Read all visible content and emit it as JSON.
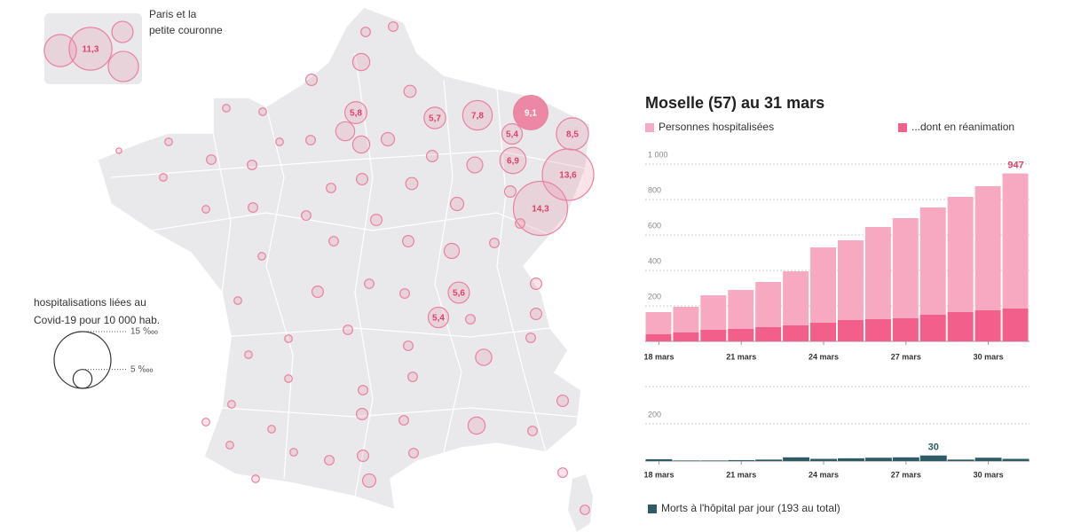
{
  "map": {
    "inset_label": "Paris et la petite couronne",
    "legend_title": "hospitalisations liées au Covid-19 pour 10 000 hab.",
    "legend_sizes": [
      15,
      5
    ],
    "legend_size_labels": [
      "15 ‱",
      "5 ‱"
    ],
    "bubble_color": "#e8829f",
    "highlight_color": "#ec7d9d",
    "bubbles": [
      11.3,
      5.8,
      5.7,
      7.8,
      9.1,
      5.4,
      8.5,
      6.9,
      13.6,
      14.3,
      5.6,
      5.4,
      5.6,
      8,
      8.5,
      4.5,
      3,
      3.2,
      2.5,
      2.5,
      2,
      2,
      5,
      3.5,
      4.5,
      2.5,
      2,
      2,
      1.5,
      2.5,
      2.5,
      2,
      3,
      3.2,
      4.2,
      3,
      3,
      3.5,
      2.5,
      2.5,
      2,
      2.5,
      3,
      2.5,
      2,
      3,
      4,
      2.5,
      2.5,
      3,
      3,
      2,
      3,
      2.5,
      2.5,
      4.3,
      2.5,
      2.5,
      2.5,
      2,
      2,
      2.5,
      2.5,
      2.5,
      3,
      4.5,
      2.5,
      2.5,
      3,
      2,
      2,
      2,
      2,
      2,
      2.5,
      3,
      3.5,
      2.5,
      2,
      2,
      2.5,
      2.5
    ],
    "value_labels": [
      "11,3",
      "5,8",
      "5,7",
      "7,8",
      "9,1",
      "5,4",
      "8,5",
      "6,9",
      "13,6",
      "14,3",
      "5,6",
      "5,4",
      null,
      null,
      null,
      null,
      null,
      null,
      null,
      null,
      null,
      null,
      null,
      null,
      null,
      null,
      null,
      null,
      null,
      null,
      null,
      null,
      null,
      null,
      null,
      null,
      null,
      null,
      null,
      null,
      null,
      null,
      null,
      null,
      null,
      null,
      null,
      null,
      null,
      null,
      null,
      null,
      null,
      null,
      null,
      null,
      null,
      null,
      null,
      null,
      null,
      null,
      null,
      null,
      null,
      null,
      null,
      null,
      null,
      null,
      null,
      null,
      null,
      null,
      null,
      null,
      null,
      null,
      null,
      null,
      null,
      null
    ]
  },
  "chart_data": [
    {
      "type": "bar",
      "title": "Moselle (57) au 31 mars",
      "categories": [
        "18 mars",
        null,
        null,
        "21 mars",
        null,
        null,
        "24 mars",
        null,
        null,
        "27 mars",
        null,
        null,
        "30 mars",
        null
      ],
      "series": [
        {
          "name": "Personnes hospitalisées",
          "color": "#f6a9c0",
          "values": [
            165,
            195,
            260,
            290,
            335,
            395,
            530,
            570,
            645,
            695,
            755,
            815,
            875,
            947
          ]
        },
        {
          "name": "...dont en réanimation",
          "color": "#f25f8b",
          "values": [
            40,
            50,
            65,
            70,
            80,
            90,
            105,
            120,
            125,
            130,
            150,
            165,
            175,
            185
          ]
        }
      ],
      "value_labels": {
        "series": 0,
        "index": 13,
        "label": "947"
      },
      "ylim": [
        0,
        1000
      ],
      "yticks": [
        {
          "value": 200,
          "label": "200"
        },
        400,
        600,
        800,
        {
          "value": 1000,
          "label": "1 000"
        }
      ],
      "grid": true
    },
    {
      "type": "bar",
      "categories": [
        "18 mars",
        null,
        null,
        "21 mars",
        null,
        null,
        "24 mars",
        null,
        null,
        "27 mars",
        null,
        null,
        "30 mars",
        null
      ],
      "series": [
        {
          "name": "Morts à l'hôpital par jour (193 au total)",
          "color": "#2e5b66",
          "values": [
            10,
            3,
            3,
            5,
            8,
            20,
            12,
            15,
            18,
            20,
            30,
            8,
            18,
            12
          ]
        }
      ],
      "value_labels": {
        "series": 0,
        "index": 10,
        "label": "30"
      },
      "ylim": [
        0,
        400
      ],
      "yticks": [
        200
      ],
      "grid": true
    }
  ]
}
